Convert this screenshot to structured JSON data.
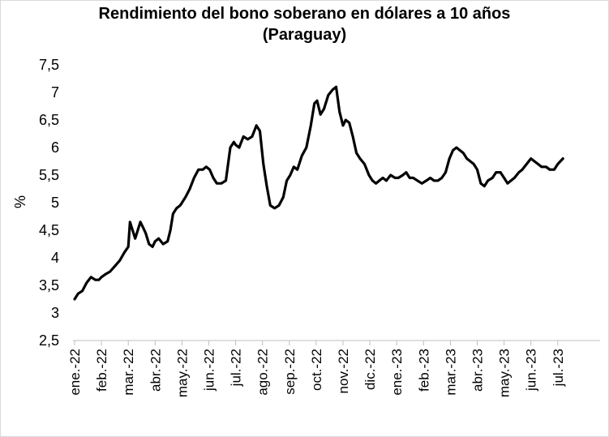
{
  "chart_data": {
    "type": "line",
    "title": "Rendimiento del bono soberano en dólares a 10 años",
    "subtitle": "(Paraguay)",
    "ylabel": "%",
    "xlabel": "",
    "ylim": [
      2.5,
      7.5
    ],
    "yticks": [
      "2,5",
      "3",
      "3,5",
      "4",
      "4,5",
      "5",
      "5,5",
      "6",
      "6,5",
      "7",
      "7,5"
    ],
    "ytick_values": [
      2.5,
      3,
      3.5,
      4,
      4.5,
      5,
      5.5,
      6,
      6.5,
      7,
      7.5
    ],
    "xticks": [
      "ene.-22",
      "feb.-22",
      "mar.-22",
      "abr.-22",
      "may.-22",
      "jun.-22",
      "jul.-22",
      "ago.-22",
      "sep.-22",
      "oct.-22",
      "nov.-22",
      "dic.-22",
      "ene.-23",
      "feb.-23",
      "mar.-23",
      "abr.-23",
      "may.-23",
      "jun.-23",
      "jul.-23"
    ],
    "grid": false,
    "legend": "none",
    "line_color": "#000000",
    "series": [
      {
        "x": [
          "2022-01-01",
          "2022-01-05",
          "2022-01-10",
          "2022-01-15",
          "2022-01-20",
          "2022-01-25",
          "2022-01-29",
          "2022-02-01",
          "2022-02-05",
          "2022-02-10",
          "2022-02-15",
          "2022-02-20",
          "2022-02-25",
          "2022-03-01",
          "2022-03-03",
          "2022-03-06",
          "2022-03-09",
          "2022-03-12",
          "2022-03-15",
          "2022-03-18",
          "2022-03-21",
          "2022-03-25",
          "2022-03-29",
          "2022-04-01",
          "2022-04-05",
          "2022-04-10",
          "2022-04-15",
          "2022-04-18",
          "2022-04-21",
          "2022-04-25",
          "2022-04-29",
          "2022-05-01",
          "2022-05-05",
          "2022-05-10",
          "2022-05-15",
          "2022-05-20",
          "2022-05-25",
          "2022-05-29",
          "2022-06-02",
          "2022-06-06",
          "2022-06-10",
          "2022-06-15",
          "2022-06-20",
          "2022-06-25",
          "2022-06-29",
          "2022-07-01",
          "2022-07-05",
          "2022-07-10",
          "2022-07-15",
          "2022-07-20",
          "2022-07-25",
          "2022-07-29",
          "2022-08-02",
          "2022-08-06",
          "2022-08-10",
          "2022-08-15",
          "2022-08-20",
          "2022-08-25",
          "2022-08-29",
          "2022-09-02",
          "2022-09-06",
          "2022-09-10",
          "2022-09-15",
          "2022-09-20",
          "2022-09-25",
          "2022-09-29",
          "2022-10-02",
          "2022-10-06",
          "2022-10-10",
          "2022-10-15",
          "2022-10-20",
          "2022-10-24",
          "2022-10-28",
          "2022-11-01",
          "2022-11-04",
          "2022-11-08",
          "2022-11-12",
          "2022-11-16",
          "2022-11-20",
          "2022-11-25",
          "2022-11-30",
          "2022-12-04",
          "2022-12-08",
          "2022-12-12",
          "2022-12-16",
          "2022-12-20",
          "2022-12-25",
          "2022-12-30",
          "2023-01-03",
          "2023-01-08",
          "2023-01-12",
          "2023-01-16",
          "2023-01-20",
          "2023-01-25",
          "2023-01-30",
          "2023-02-04",
          "2023-02-08",
          "2023-02-12",
          "2023-02-16",
          "2023-02-20",
          "2023-02-24",
          "2023-02-28",
          "2023-03-04",
          "2023-03-08",
          "2023-03-12",
          "2023-03-16",
          "2023-03-20",
          "2023-03-24",
          "2023-03-28",
          "2023-04-01",
          "2023-04-05",
          "2023-04-09",
          "2023-04-13",
          "2023-04-18",
          "2023-04-22",
          "2023-04-27",
          "2023-05-01",
          "2023-05-05",
          "2023-05-09",
          "2023-05-13",
          "2023-05-18",
          "2023-05-22",
          "2023-05-27",
          "2023-06-01",
          "2023-06-05",
          "2023-06-09",
          "2023-06-13",
          "2023-06-18",
          "2023-06-22",
          "2023-06-27",
          "2023-07-01",
          "2023-07-04",
          "2023-07-07"
        ],
        "y": [
          3.25,
          3.35,
          3.4,
          3.55,
          3.65,
          3.6,
          3.6,
          3.65,
          3.7,
          3.75,
          3.85,
          3.95,
          4.1,
          4.2,
          4.65,
          4.5,
          4.35,
          4.5,
          4.65,
          4.55,
          4.45,
          4.25,
          4.2,
          4.3,
          4.35,
          4.25,
          4.3,
          4.5,
          4.8,
          4.9,
          4.95,
          5.0,
          5.1,
          5.25,
          5.45,
          5.6,
          5.6,
          5.65,
          5.6,
          5.45,
          5.35,
          5.35,
          5.4,
          6.0,
          6.1,
          6.05,
          6.0,
          6.2,
          6.15,
          6.2,
          6.4,
          6.3,
          5.7,
          5.3,
          4.95,
          4.9,
          4.95,
          5.1,
          5.4,
          5.5,
          5.65,
          5.6,
          5.85,
          6.0,
          6.4,
          6.8,
          6.85,
          6.6,
          6.7,
          6.95,
          7.05,
          7.1,
          6.65,
          6.4,
          6.5,
          6.45,
          6.2,
          5.9,
          5.8,
          5.7,
          5.5,
          5.4,
          5.35,
          5.4,
          5.45,
          5.4,
          5.5,
          5.45,
          5.45,
          5.5,
          5.55,
          5.45,
          5.45,
          5.4,
          5.35,
          5.4,
          5.45,
          5.4,
          5.4,
          5.45,
          5.55,
          5.8,
          5.95,
          6.0,
          5.95,
          5.9,
          5.8,
          5.75,
          5.7,
          5.6,
          5.35,
          5.3,
          5.4,
          5.45,
          5.55,
          5.55,
          5.45,
          5.35,
          5.4,
          5.45,
          5.55,
          5.6,
          5.7,
          5.8,
          5.75,
          5.7,
          5.65,
          5.65,
          5.6,
          5.6,
          5.7,
          5.75,
          5.8
        ]
      }
    ]
  }
}
